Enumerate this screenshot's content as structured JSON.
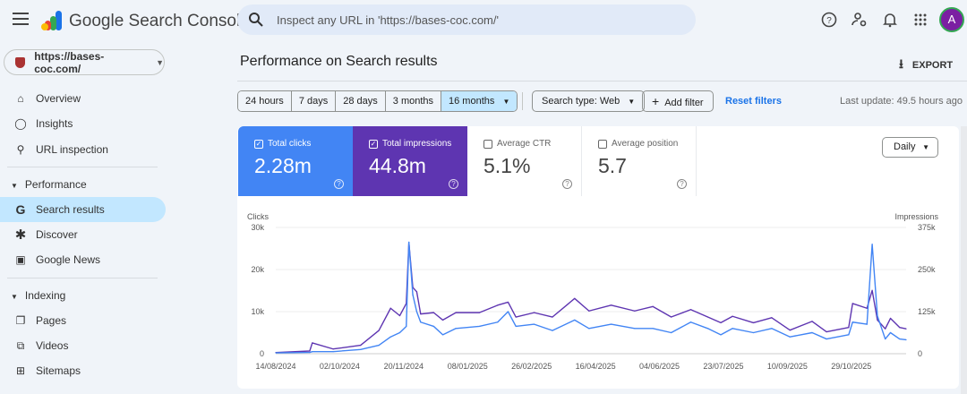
{
  "header": {
    "brand": "Google Search Console",
    "search_placeholder": "Inspect any URL in 'https://bases-coc.com/'",
    "avatar_letter": "A",
    "icons": [
      "menu-icon",
      "search-icon",
      "help-icon",
      "manage-users-icon",
      "notifications-icon",
      "apps-icon"
    ]
  },
  "sidebar": {
    "property": "https://bases-coc.com/",
    "items_top": [
      {
        "label": "Overview",
        "icon": "home-icon"
      },
      {
        "label": "Insights",
        "icon": "bulb-icon"
      },
      {
        "label": "URL inspection",
        "icon": "search-icon"
      }
    ],
    "performance": {
      "label": "Performance",
      "items": [
        {
          "label": "Search results",
          "icon": "google-g-icon",
          "selected": true
        },
        {
          "label": "Discover",
          "icon": "asterisk-icon"
        },
        {
          "label": "Google News",
          "icon": "news-icon"
        }
      ]
    },
    "indexing": {
      "label": "Indexing",
      "items": [
        {
          "label": "Pages",
          "icon": "pages-icon"
        },
        {
          "label": "Videos",
          "icon": "videos-icon"
        },
        {
          "label": "Sitemaps",
          "icon": "sitemap-icon"
        }
      ]
    }
  },
  "main": {
    "title": "Performance on Search results",
    "export_label": "EXPORT",
    "ranges": [
      "24 hours",
      "7 days",
      "28 days",
      "3 months",
      "16 months"
    ],
    "selected_range": "16 months",
    "search_type": "Search type: Web",
    "add_filter": "Add filter",
    "reset_filters": "Reset filters",
    "last_update": "Last update: 49.5 hours ago",
    "granularity": "Daily",
    "metrics": [
      {
        "label": "Total clicks",
        "value": "2.28m",
        "checked": true,
        "color": "#4285f4"
      },
      {
        "label": "Total impressions",
        "value": "44.8m",
        "checked": true,
        "color": "#5e35b1"
      },
      {
        "label": "Average CTR",
        "value": "5.1%",
        "checked": false
      },
      {
        "label": "Average position",
        "value": "5.7",
        "checked": false
      }
    ]
  },
  "chart_data": {
    "type": "line",
    "left_axis_label": "Clicks",
    "right_axis_label": "Impressions",
    "left_ticks": [
      "0",
      "10k",
      "20k",
      "30k"
    ],
    "right_ticks": [
      "0",
      "125k",
      "250k",
      "375k"
    ],
    "left_ylim": [
      0,
      30000
    ],
    "right_ylim": [
      0,
      375000
    ],
    "x_ticks": [
      "14/08/2024",
      "02/10/2024",
      "20/11/2024",
      "08/01/2025",
      "26/02/2025",
      "16/04/2025",
      "04/06/2025",
      "23/07/2025",
      "10/09/2025",
      "29/10/2025"
    ],
    "xlim": [
      "2024-08-14",
      "2025-12-10"
    ],
    "grid": true,
    "series": [
      {
        "name": "Clicks",
        "axis": "left",
        "color": "#4285f4",
        "points": [
          [
            "2024-08-14",
            200
          ],
          [
            "2024-09-09",
            300
          ],
          [
            "2024-09-11",
            500
          ],
          [
            "2024-09-27",
            500
          ],
          [
            "2024-10-18",
            1000
          ],
          [
            "2024-11-01",
            2000
          ],
          [
            "2024-11-10",
            4000
          ],
          [
            "2024-11-17",
            5000
          ],
          [
            "2024-11-22",
            6500
          ],
          [
            "2024-11-24",
            26500
          ],
          [
            "2024-11-27",
            14000
          ],
          [
            "2024-11-30",
            10000
          ],
          [
            "2024-12-03",
            7500
          ],
          [
            "2024-12-13",
            6500
          ],
          [
            "2024-12-20",
            4500
          ],
          [
            "2024-12-30",
            6000
          ],
          [
            "2025-01-17",
            6500
          ],
          [
            "2025-01-31",
            7500
          ],
          [
            "2025-02-08",
            10000
          ],
          [
            "2025-02-14",
            6500
          ],
          [
            "2025-02-28",
            7000
          ],
          [
            "2025-03-14",
            5500
          ],
          [
            "2025-03-31",
            8000
          ],
          [
            "2025-04-11",
            6000
          ],
          [
            "2025-04-28",
            7000
          ],
          [
            "2025-05-16",
            6000
          ],
          [
            "2025-05-30",
            6000
          ],
          [
            "2025-06-13",
            5000
          ],
          [
            "2025-06-28",
            7500
          ],
          [
            "2025-07-11",
            6000
          ],
          [
            "2025-07-21",
            4500
          ],
          [
            "2025-07-30",
            6000
          ],
          [
            "2025-08-15",
            5000
          ],
          [
            "2025-08-29",
            6000
          ],
          [
            "2025-09-12",
            4000
          ],
          [
            "2025-09-29",
            5000
          ],
          [
            "2025-10-10",
            3500
          ],
          [
            "2025-10-27",
            4500
          ],
          [
            "2025-10-30",
            7500
          ],
          [
            "2025-11-10",
            7000
          ],
          [
            "2025-11-14",
            26000
          ],
          [
            "2025-11-18",
            9000
          ],
          [
            "2025-11-24",
            3500
          ],
          [
            "2025-11-28",
            5000
          ],
          [
            "2025-12-05",
            3500
          ],
          [
            "2025-12-10",
            3300
          ]
        ]
      },
      {
        "name": "Impressions",
        "axis": "right",
        "color": "#5e35b1",
        "points": [
          [
            "2024-08-14",
            3500
          ],
          [
            "2024-09-09",
            8000
          ],
          [
            "2024-09-11",
            32000
          ],
          [
            "2024-09-27",
            14000
          ],
          [
            "2024-10-18",
            25000
          ],
          [
            "2024-11-01",
            69000
          ],
          [
            "2024-11-10",
            135000
          ],
          [
            "2024-11-17",
            113000
          ],
          [
            "2024-11-22",
            149000
          ],
          [
            "2024-11-24",
            330000
          ],
          [
            "2024-11-27",
            197000
          ],
          [
            "2024-11-30",
            184000
          ],
          [
            "2024-12-03",
            118000
          ],
          [
            "2024-12-13",
            122000
          ],
          [
            "2024-12-20",
            100000
          ],
          [
            "2024-12-30",
            122000
          ],
          [
            "2025-01-17",
            122000
          ],
          [
            "2025-01-31",
            144000
          ],
          [
            "2025-02-08",
            153000
          ],
          [
            "2025-02-14",
            109000
          ],
          [
            "2025-02-28",
            122000
          ],
          [
            "2025-03-14",
            109000
          ],
          [
            "2025-03-31",
            164000
          ],
          [
            "2025-04-11",
            127000
          ],
          [
            "2025-04-28",
            144000
          ],
          [
            "2025-05-16",
            127000
          ],
          [
            "2025-05-30",
            140000
          ],
          [
            "2025-06-13",
            109000
          ],
          [
            "2025-06-28",
            131000
          ],
          [
            "2025-07-11",
            109000
          ],
          [
            "2025-07-21",
            92000
          ],
          [
            "2025-07-30",
            111000
          ],
          [
            "2025-08-15",
            92000
          ],
          [
            "2025-08-29",
            107000
          ],
          [
            "2025-09-12",
            70000
          ],
          [
            "2025-09-29",
            96000
          ],
          [
            "2025-10-10",
            65000
          ],
          [
            "2025-10-27",
            78000
          ],
          [
            "2025-10-30",
            149000
          ],
          [
            "2025-11-10",
            135000
          ],
          [
            "2025-11-14",
            188000
          ],
          [
            "2025-11-18",
            100000
          ],
          [
            "2025-11-24",
            74000
          ],
          [
            "2025-11-28",
            105000
          ],
          [
            "2025-12-05",
            78000
          ],
          [
            "2025-12-10",
            74000
          ]
        ]
      }
    ]
  }
}
